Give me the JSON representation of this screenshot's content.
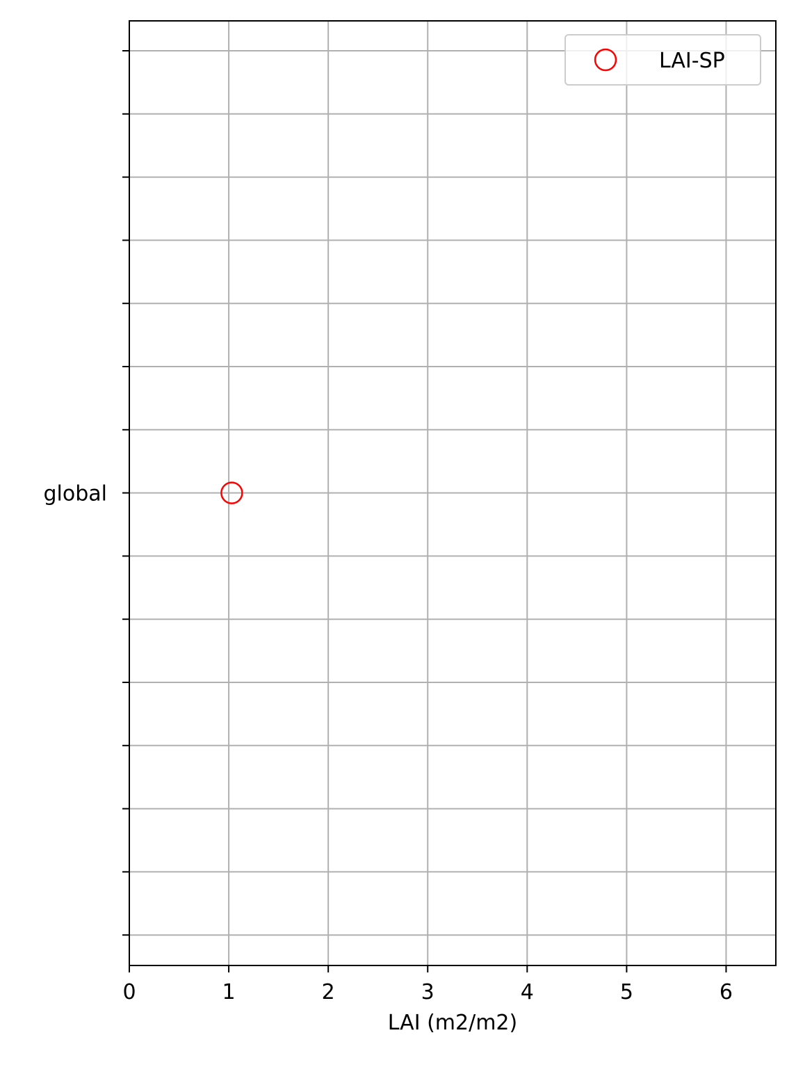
{
  "chart_data": {
    "type": "scatter",
    "xlabel": "LAI (m2/m2)",
    "ylabel": "",
    "xlim": [
      0,
      6.5
    ],
    "xticks": [
      "0",
      "1",
      "2",
      "3",
      "4",
      "5",
      "6"
    ],
    "ytick_labels": [
      "global"
    ],
    "grid": true,
    "legend": {
      "placement": "top-right"
    },
    "series": [
      {
        "name": "LAI-SP",
        "marker": "open-circle",
        "color": "#ff0000",
        "points": [
          {
            "x": 1.03,
            "y": "global"
          }
        ]
      }
    ]
  }
}
